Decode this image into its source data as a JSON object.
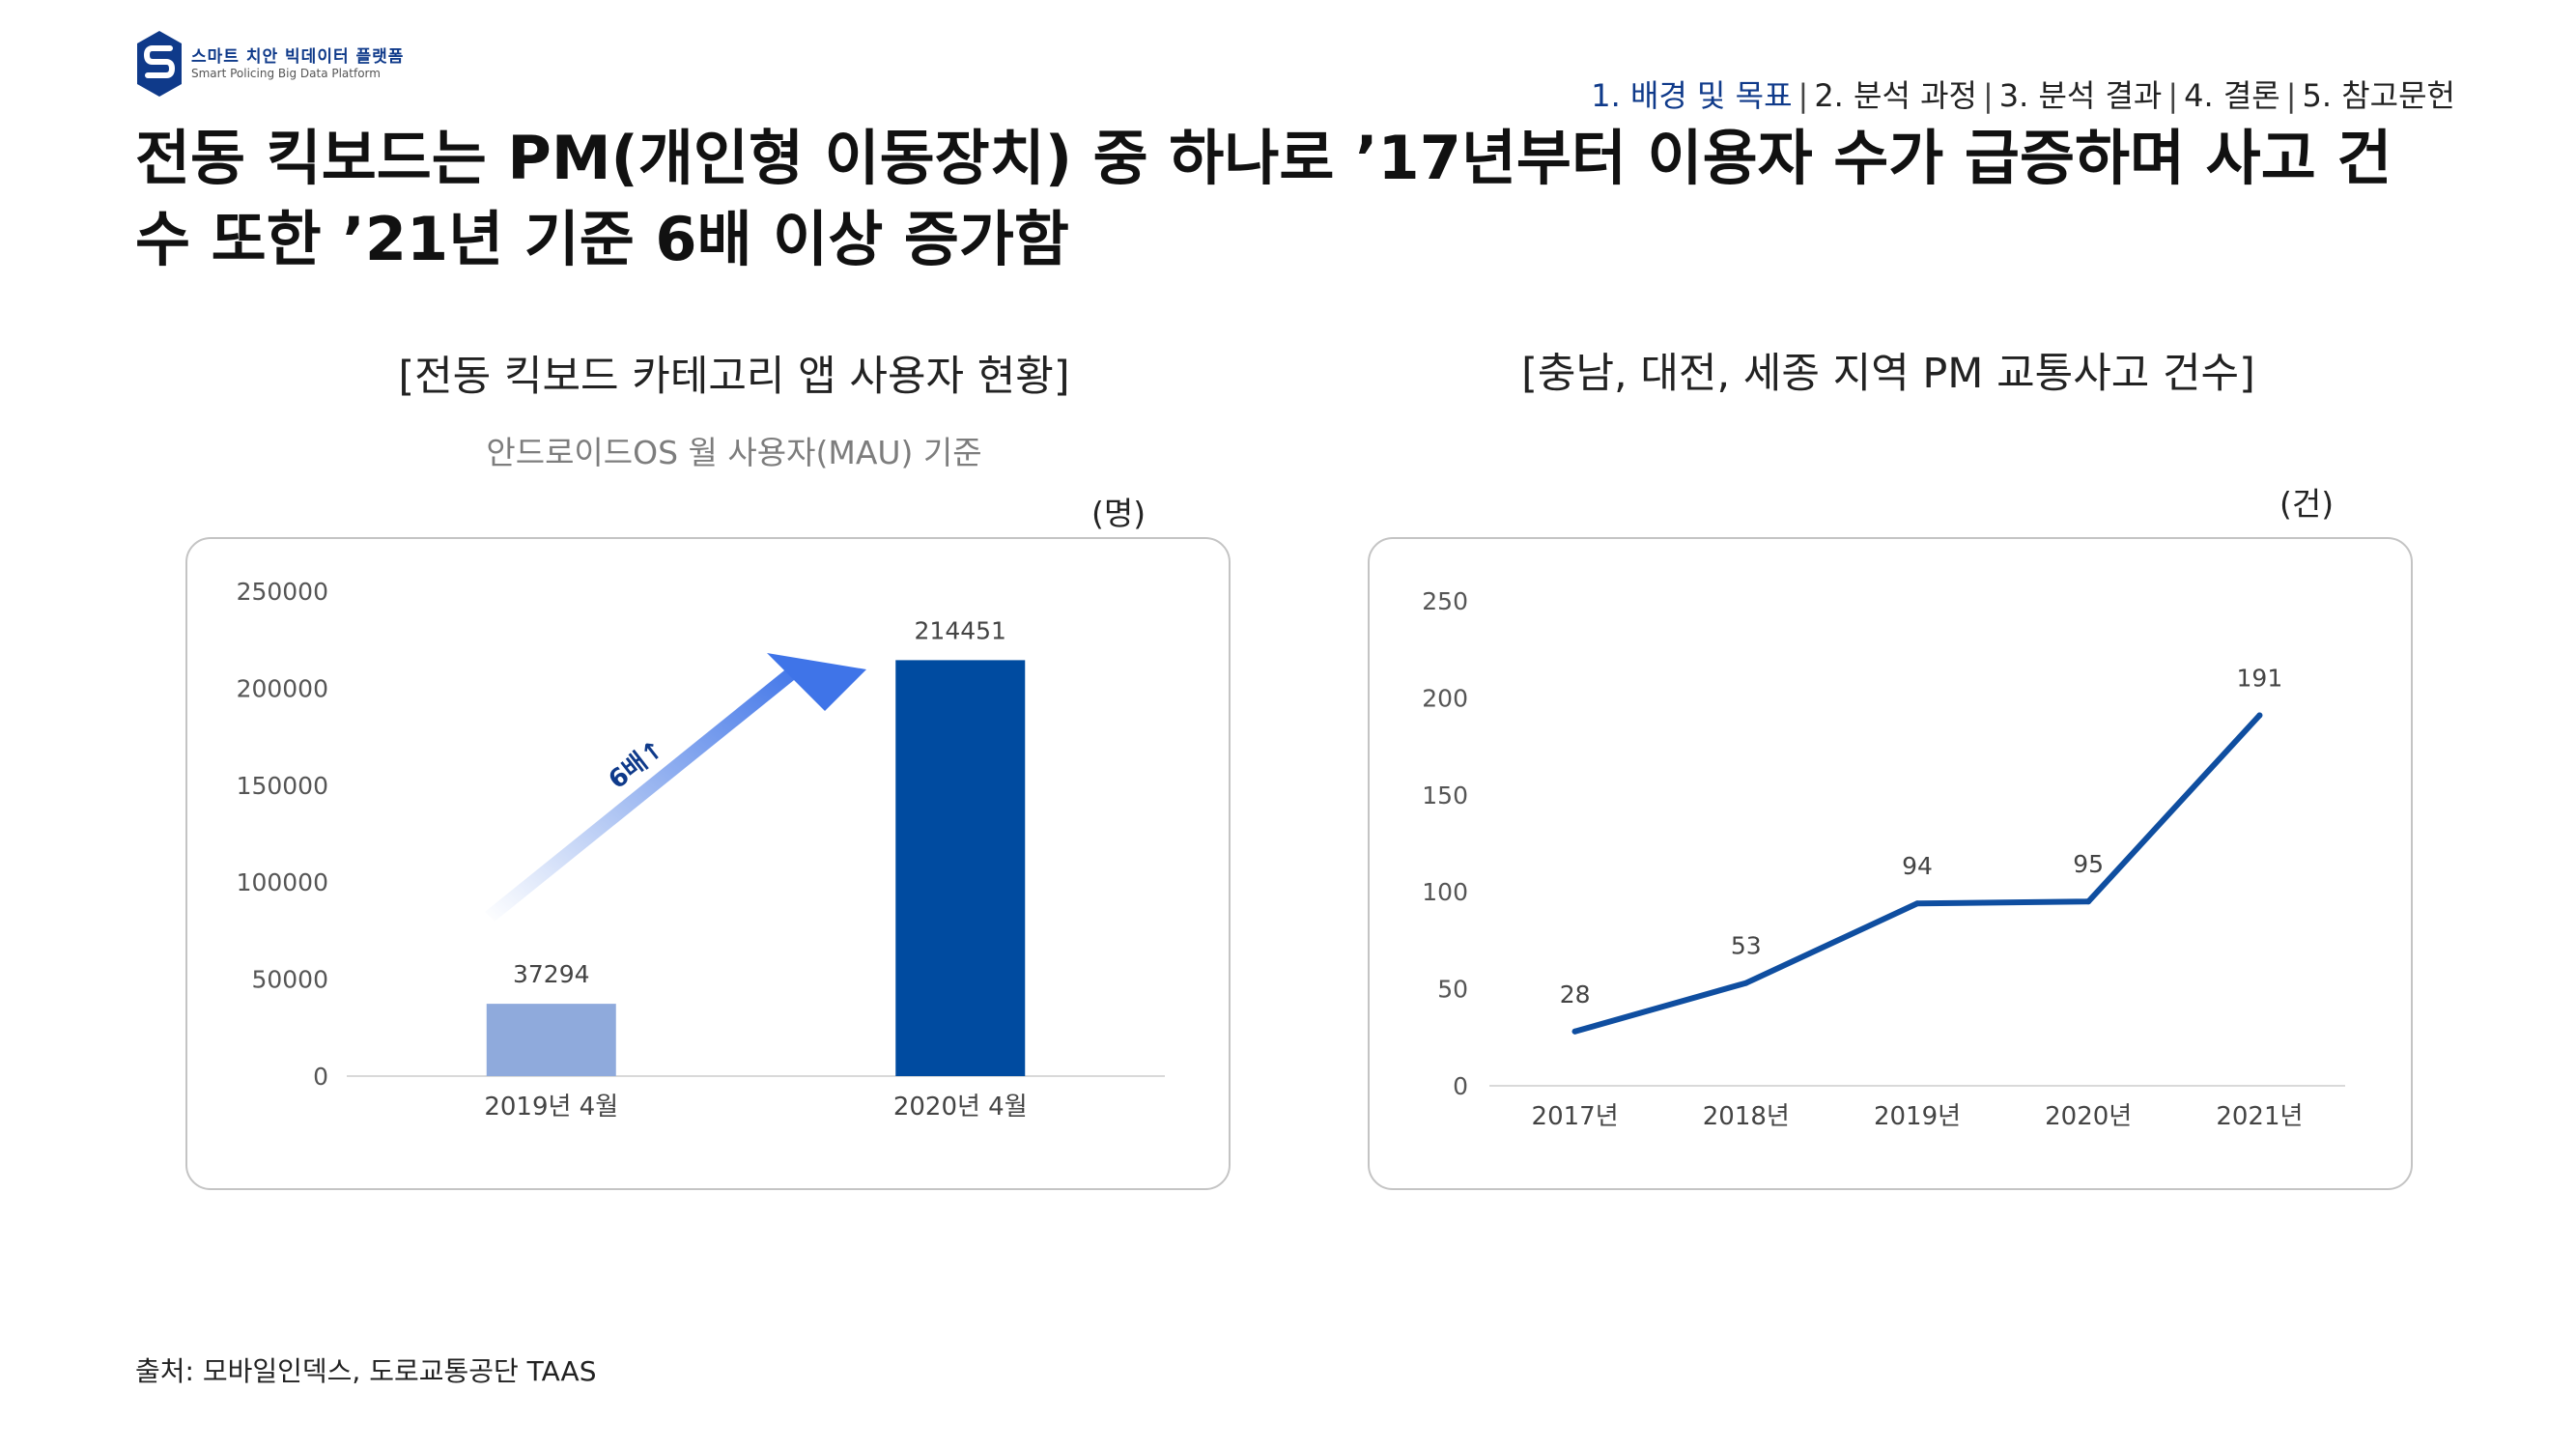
{
  "logo": {
    "name": "스마트 치안 빅데이터 플랫폼",
    "subtitle": "Smart Policing Big Data Platform",
    "brand_color": "#0f3a8a"
  },
  "nav": {
    "items": [
      "1. 배경 및 목표",
      "2. 분석 과정",
      "3. 분석 결과",
      "4. 결론",
      "5. 참고문헌"
    ],
    "active_index": 0,
    "active_color": "#0f3a8a"
  },
  "headline": {
    "line1": "전동 킥보드는 PM(개인형 이동장치) 중 하나로 ’17년부터 이용자 수가 급증하며 사고 건",
    "line2": "수 또한 ’21년 기준 6배 이상 증가함"
  },
  "chart_data": [
    {
      "type": "bar",
      "title": "[전동 킥보드 카테고리 앱 사용자 현황]",
      "subtitle": "안드로이드OS 월 사용자(MAU) 기준",
      "unit": "(명)",
      "categories": [
        "2019년 4월",
        "2020년 4월"
      ],
      "values": [
        37294,
        214451
      ],
      "data_labels": [
        "37294",
        "214451"
      ],
      "yticks": [
        0,
        50000,
        100000,
        150000,
        200000,
        250000
      ],
      "ylim": [
        0,
        250000
      ],
      "colors": [
        "#8faadc",
        "#004ba0"
      ],
      "annotation": "6배↑",
      "annotation_color": "#0f3a8a",
      "grid": false
    },
    {
      "type": "line",
      "title": "[충남, 대전, 세종 지역 PM 교통사고 건수]",
      "unit": "(건)",
      "categories": [
        "2017년",
        "2018년",
        "2019년",
        "2020년",
        "2021년"
      ],
      "values": [
        28,
        53,
        94,
        95,
        191
      ],
      "data_labels": [
        "28",
        "53",
        "94",
        "95",
        "191"
      ],
      "yticks": [
        0,
        50,
        100,
        150,
        200,
        250
      ],
      "ylim": [
        0,
        250
      ],
      "color": "#0f4ea0",
      "grid": false
    }
  ],
  "source": "출처:  모바일인덱스, 도로교통공단 TAAS"
}
